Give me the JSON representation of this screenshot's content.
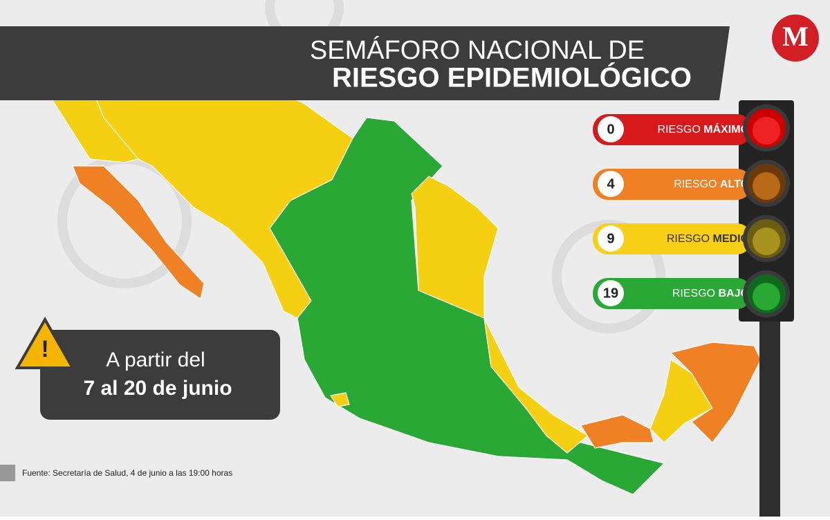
{
  "header": {
    "title_line1": "SEMÁFORO NACIONAL DE",
    "title_line2": "RIESGO EPIDEMIOLÓGICO",
    "logo": "M"
  },
  "legend": [
    {
      "count": 0,
      "label": "RIESGO",
      "level": "MÁXIMO"
    },
    {
      "count": 4,
      "label": "RIESGO",
      "level": "ALTO"
    },
    {
      "count": 9,
      "label": "RIESGO",
      "level": "MEDIO"
    },
    {
      "count": 19,
      "label": "RIESGO",
      "level": "BAJO"
    }
  ],
  "notice": {
    "line1": "A partir del",
    "line2": "7 al 20 de junio"
  },
  "source": "Fuente: Secretaría de Salud, 4 de junio a las 19:00 horas"
}
